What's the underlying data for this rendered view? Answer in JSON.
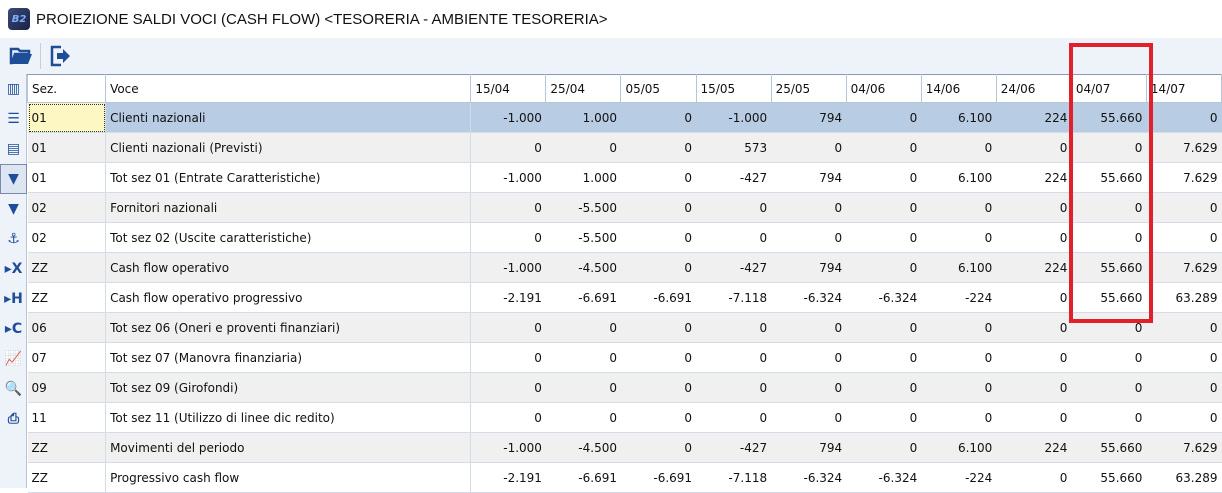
{
  "window": {
    "title": "PROIEZIONE SALDI VOCI (CASH FLOW) <TESORERIA - AMBIENTE TESORERIA>",
    "logo_text": "B2"
  },
  "toolbar": [
    {
      "icon": "folder-open-icon"
    },
    {
      "icon": "exit-icon"
    }
  ],
  "sidebar": [
    "column-chooser-icon",
    "list-icon",
    "grid-icon",
    "filter-active-icon",
    "filter-icon",
    "anchor-icon",
    "x-icon",
    "h-icon",
    "c-icon",
    "chart-icon",
    "print-preview-icon",
    "print-icon"
  ],
  "columns": [
    "Sez.",
    "Voce",
    "15/04",
    "25/04",
    "05/05",
    "15/05",
    "25/05",
    "04/06",
    "14/06",
    "24/06",
    "04/07",
    "14/07"
  ],
  "highlight": {
    "column": "04/07",
    "color": "#e0202a"
  },
  "selection_color": "#b8cce4",
  "rows": [
    {
      "sez": "01",
      "voce": "Clienti nazionali",
      "values": [
        "-1.000",
        "1.000",
        "0",
        "-1.000",
        "794",
        "0",
        "6.100",
        "224",
        "55.660",
        "0"
      ]
    },
    {
      "sez": "01",
      "voce": "Clienti nazionali (Previsti)",
      "values": [
        "0",
        "0",
        "0",
        "573",
        "0",
        "0",
        "0",
        "0",
        "0",
        "7.629"
      ]
    },
    {
      "sez": "01",
      "voce": "Tot sez 01 (Entrate Caratteristiche)",
      "values": [
        "-1.000",
        "1.000",
        "0",
        "-427",
        "794",
        "0",
        "6.100",
        "224",
        "55.660",
        "7.629"
      ]
    },
    {
      "sez": "02",
      "voce": "Fornitori nazionali",
      "values": [
        "0",
        "-5.500",
        "0",
        "0",
        "0",
        "0",
        "0",
        "0",
        "0",
        "0"
      ]
    },
    {
      "sez": "02",
      "voce": "Tot sez 02 (Uscite caratteristiche)",
      "values": [
        "0",
        "-5.500",
        "0",
        "0",
        "0",
        "0",
        "0",
        "0",
        "0",
        "0"
      ]
    },
    {
      "sez": "ZZ",
      "voce": "Cash flow operativo",
      "values": [
        "-1.000",
        "-4.500",
        "0",
        "-427",
        "794",
        "0",
        "6.100",
        "224",
        "55.660",
        "7.629"
      ]
    },
    {
      "sez": "ZZ",
      "voce": "Cash flow operativo progressivo",
      "values": [
        "-2.191",
        "-6.691",
        "-6.691",
        "-7.118",
        "-6.324",
        "-6.324",
        "-224",
        "0",
        "55.660",
        "63.289"
      ]
    },
    {
      "sez": "06",
      "voce": "Tot sez 06 (Oneri e proventi finanziari)",
      "values": [
        "0",
        "0",
        "0",
        "0",
        "0",
        "0",
        "0",
        "0",
        "0",
        "0"
      ]
    },
    {
      "sez": "07",
      "voce": "Tot sez 07 (Manovra finanziaria)",
      "values": [
        "0",
        "0",
        "0",
        "0",
        "0",
        "0",
        "0",
        "0",
        "0",
        "0"
      ]
    },
    {
      "sez": "09",
      "voce": "Tot sez 09 (Girofondi)",
      "values": [
        "0",
        "0",
        "0",
        "0",
        "0",
        "0",
        "0",
        "0",
        "0",
        "0"
      ]
    },
    {
      "sez": "11",
      "voce": "Tot sez 11 (Utilizzo di linee dic redito)",
      "values": [
        "0",
        "0",
        "0",
        "0",
        "0",
        "0",
        "0",
        "0",
        "0",
        "0"
      ]
    },
    {
      "sez": "ZZ",
      "voce": "Movimenti del periodo",
      "values": [
        "-1.000",
        "-4.500",
        "0",
        "-427",
        "794",
        "0",
        "6.100",
        "224",
        "55.660",
        "7.629"
      ]
    },
    {
      "sez": "ZZ",
      "voce": "Progressivo cash flow",
      "values": [
        "-2.191",
        "-6.691",
        "-6.691",
        "-7.118",
        "-6.324",
        "-6.324",
        "-224",
        "0",
        "55.660",
        "63.289"
      ]
    }
  ]
}
